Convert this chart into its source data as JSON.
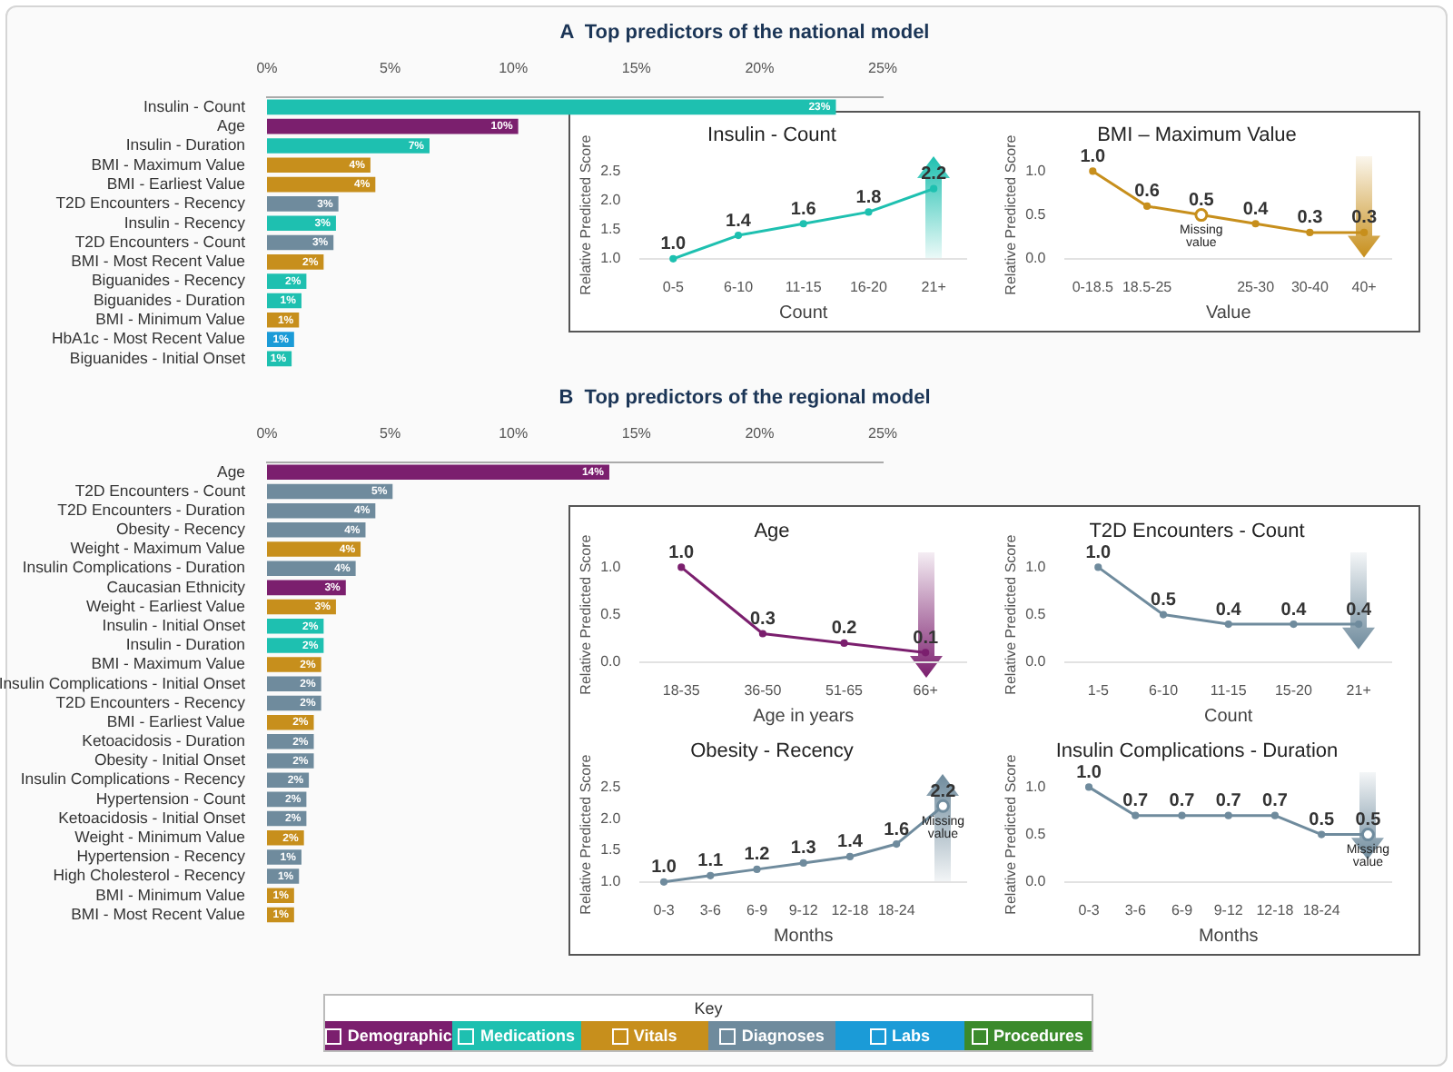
{
  "chart_data": [
    {
      "type": "bar",
      "title": "A  Top predictors of the national model",
      "orientation": "horizontal",
      "categories": [
        "Insulin - Count",
        "Age",
        "Insulin - Duration",
        "BMI - Maximum Value",
        "BMI - Earliest Value",
        "T2D Encounters - Recency",
        "Insulin - Recency",
        "T2D Encounters - Count",
        "BMI - Most Recent Value",
        "Biguanides - Recency",
        "Biguanides - Duration",
        "BMI - Minimum Value",
        "HbA1c - Most Recent Value",
        "Biguanides - Initial Onset"
      ],
      "values": [
        23.1,
        10.2,
        6.6,
        4.2,
        4.4,
        2.9,
        2.8,
        2.7,
        2.3,
        1.6,
        1.4,
        1.3,
        1.1,
        1.0
      ],
      "value_labels": [
        "23%",
        "10%",
        "7%",
        "4%",
        "4%",
        "3%",
        "3%",
        "3%",
        "2%",
        "2%",
        "1%",
        "1%",
        "1%",
        "1%"
      ],
      "colors": [
        "#1ec0b0",
        "#7b1f6e",
        "#1ec0b0",
        "#c78f1c",
        "#c78f1c",
        "#6f8b9d",
        "#1ec0b0",
        "#6f8b9d",
        "#c78f1c",
        "#1ec0b0",
        "#1ec0b0",
        "#c78f1c",
        "#1b9bd7",
        "#1ec0b0"
      ],
      "xlim": [
        0,
        25
      ],
      "xticks": [
        {
          "value": 0,
          "label": "0%"
        },
        {
          "value": 5,
          "label": "5%"
        },
        {
          "value": 10,
          "label": "10%"
        },
        {
          "value": 15,
          "label": "15%"
        },
        {
          "value": 20,
          "label": "20%"
        },
        {
          "value": 25,
          "label": "25%"
        }
      ]
    },
    {
      "type": "line",
      "title": "Insulin - Count",
      "xlabel": "Count",
      "ylabel": "Relative Predicted Score",
      "categories": [
        "0-5",
        "6-10",
        "11-15",
        "16-20",
        "21+"
      ],
      "values": [
        1.0,
        1.4,
        1.6,
        1.8,
        2.2
      ],
      "value_labels": [
        "1.0",
        "1.4",
        "1.6",
        "1.8",
        "2.2"
      ],
      "color": "#1ec0b0",
      "marker": "circle",
      "ylim": [
        1,
        2.5
      ],
      "yticks": [
        {
          "value": 1,
          "label": "1.0"
        },
        {
          "value": 1.5,
          "label": "1.5"
        },
        {
          "value": 2,
          "label": "2.0"
        },
        {
          "value": 2.5,
          "label": "2.5"
        }
      ]
    },
    {
      "type": "line",
      "title": "BMI – Maximum Value",
      "xlabel": "Value",
      "ylabel": "Relative Predicted Score",
      "categories": [
        "0-18.5",
        "18.5-25",
        null,
        "25-30",
        "30-40",
        "40+"
      ],
      "values": [
        1.0,
        0.6,
        0.5,
        0.4,
        0.3,
        0.3
      ],
      "value_labels": [
        "1.0",
        "0.6",
        "0.5",
        "0.4",
        "0.3",
        "0.3"
      ],
      "color": "#c78f1c",
      "marker": "circle",
      "ylim": [
        0,
        1
      ],
      "yticks": [
        {
          "value": 0,
          "label": "0.0"
        },
        {
          "value": 0.5,
          "label": "0.5"
        },
        {
          "value": 1,
          "label": "1.0"
        }
      ],
      "annotations": [
        {
          "text": "Missing value",
          "y": 0.5
        }
      ]
    },
    {
      "type": "bar",
      "title": "B  Top predictors of the regional model",
      "orientation": "horizontal",
      "stacked": true,
      "legend": "bottom",
      "legend_title": "Key",
      "categories": [
        "Age",
        "T2D Encounters - Count",
        "T2D Encounters - Duration",
        "Obesity - Recency",
        "Weight - Maximum Value",
        "Insulin Complications - Duration",
        "Caucasian Ethnicity",
        "Weight - Earliest Value",
        "Insulin - Initial Onset",
        "Insulin - Duration",
        "BMI - Maximum Value",
        "Insulin Complications - Initial Onset",
        "T2D Encounters - Recency",
        "BMI - Earliest Value",
        "Ketoacidosis - Duration",
        "Obesity - Initial Onset",
        "Insulin Complications - Recency",
        "Hypertension - Count",
        "Ketoacidosis - Initial Onset",
        "Weight - Minimum Value",
        "Hypertension - Recency",
        "High Cholesterol - Recency",
        "BMI - Minimum Value",
        "BMI - Most Recent Value"
      ],
      "xlim": [
        0,
        25
      ],
      "xticks": [
        {
          "value": 0,
          "label": "0%"
        },
        {
          "value": 5,
          "label": "5%"
        },
        {
          "value": 10,
          "label": "10%"
        },
        {
          "value": 15,
          "label": "15%"
        },
        {
          "value": 20,
          "label": "20%"
        },
        {
          "value": 25,
          "label": "25%"
        }
      ],
      "series": [
        {
          "name": "Demographic",
          "color": "#7b1f6e",
          "values": [
            13.9,
            null,
            null,
            null,
            null,
            null,
            3.2,
            null,
            null,
            null,
            null,
            null,
            null,
            null,
            null,
            null,
            null,
            null,
            null,
            null,
            null,
            null,
            null,
            null
          ],
          "value_labels": [
            "14%",
            null,
            null,
            null,
            null,
            null,
            "3%",
            null,
            null,
            null,
            null,
            null,
            null,
            null,
            null,
            null,
            null,
            null,
            null,
            null,
            null,
            null,
            null,
            null
          ]
        },
        {
          "name": "Medications",
          "color": "#1ec0b0",
          "values": [
            null,
            null,
            null,
            null,
            null,
            null,
            null,
            null,
            2.3,
            2.3,
            null,
            null,
            null,
            null,
            null,
            null,
            null,
            null,
            null,
            null,
            null,
            null,
            null,
            null
          ],
          "value_labels": [
            null,
            null,
            null,
            null,
            null,
            null,
            null,
            null,
            "2%",
            "2%",
            null,
            null,
            null,
            null,
            null,
            null,
            null,
            null,
            null,
            null,
            null,
            null,
            null,
            null
          ]
        },
        {
          "name": "Vitals",
          "color": "#c78f1c",
          "values": [
            null,
            null,
            null,
            null,
            3.8,
            null,
            null,
            2.8,
            null,
            null,
            2.2,
            null,
            null,
            1.9,
            null,
            null,
            null,
            null,
            null,
            1.5,
            null,
            null,
            1.1,
            1.1
          ],
          "value_labels": [
            null,
            null,
            null,
            null,
            "4%",
            null,
            null,
            "3%",
            null,
            null,
            "2%",
            null,
            null,
            "2%",
            null,
            null,
            null,
            null,
            null,
            "2%",
            null,
            null,
            "1%",
            "1%"
          ]
        },
        {
          "name": "Diagnoses",
          "color": "#6f8b9d",
          "values": [
            null,
            5.1,
            4.4,
            4.0,
            null,
            3.6,
            null,
            null,
            null,
            null,
            null,
            2.2,
            2.2,
            null,
            1.9,
            1.9,
            1.7,
            1.6,
            1.6,
            null,
            1.4,
            1.3,
            null,
            null
          ],
          "value_labels": [
            null,
            "5%",
            "4%",
            "4%",
            null,
            "4%",
            null,
            null,
            null,
            null,
            null,
            "2%",
            "2%",
            null,
            "2%",
            "2%",
            "2%",
            "2%",
            "2%",
            null,
            "1%",
            "1%",
            null,
            null
          ]
        },
        {
          "name": "Labs",
          "color": "#1b9bd7",
          "values": [
            null,
            null,
            null,
            null,
            null,
            null,
            null,
            null,
            null,
            null,
            null,
            null,
            null,
            null,
            null,
            null,
            null,
            null,
            null,
            null,
            null,
            null,
            null,
            null
          ]
        },
        {
          "name": "Procedures",
          "color": "#3b8a2c",
          "values": [
            null,
            null,
            null,
            null,
            null,
            null,
            null,
            null,
            null,
            null,
            null,
            null,
            null,
            null,
            null,
            null,
            null,
            null,
            null,
            null,
            null,
            null,
            null,
            null
          ]
        }
      ]
    },
    {
      "type": "line",
      "title": "Age",
      "xlabel": "Age in years",
      "ylabel": "Relative Predicted Score",
      "categories": [
        "18-35",
        "36-50",
        "51-65",
        "66+"
      ],
      "values": [
        1.0,
        0.3,
        0.2,
        0.1
      ],
      "value_labels": [
        "1.0",
        "0.3",
        "0.2",
        "0.1"
      ],
      "color": "#7b1f6e",
      "marker": "circle",
      "ylim": [
        0,
        1
      ],
      "yticks": [
        {
          "value": 0,
          "label": "0.0"
        },
        {
          "value": 0.5,
          "label": "0.5"
        },
        {
          "value": 1,
          "label": "1.0"
        }
      ]
    },
    {
      "type": "line",
      "title": "T2D Encounters - Count",
      "xlabel": "Count",
      "ylabel": "Relative Predicted Score",
      "categories": [
        "1-5",
        "6-10",
        "11-15",
        "15-20",
        "21+"
      ],
      "values": [
        1.0,
        0.5,
        0.4,
        0.4,
        0.4
      ],
      "value_labels": [
        "1.0",
        "0.5",
        "0.4",
        "0.4",
        "0.4"
      ],
      "color": "#6f8b9d",
      "marker": "circle",
      "ylim": [
        0,
        1
      ],
      "yticks": [
        {
          "value": 0,
          "label": "0.0"
        },
        {
          "value": 0.5,
          "label": "0.5"
        },
        {
          "value": 1,
          "label": "1.0"
        }
      ]
    },
    {
      "type": "line",
      "title": "Obesity - Recency",
      "xlabel": "Months",
      "ylabel": "Relative Predicted Score",
      "categories": [
        "0-3",
        "3-6",
        "6-9",
        "9-12",
        "12-18",
        "18-24",
        null
      ],
      "values": [
        1.0,
        1.1,
        1.2,
        1.3,
        1.4,
        1.6,
        2.2
      ],
      "value_labels": [
        "1.0",
        "1.1",
        "1.2",
        "1.3",
        "1.4",
        "1.6",
        "2.2"
      ],
      "color": "#6f8b9d",
      "marker": "circle",
      "ylim": [
        1,
        2.5
      ],
      "yticks": [
        {
          "value": 1,
          "label": "1.0"
        },
        {
          "value": 1.5,
          "label": "1.5"
        },
        {
          "value": 2,
          "label": "2.0"
        },
        {
          "value": 2.5,
          "label": "2.5"
        }
      ],
      "annotations": [
        {
          "text": "Missing value",
          "y": 2.2
        }
      ]
    },
    {
      "type": "line",
      "title": "Insulin Complications - Duration",
      "xlabel": "Months",
      "ylabel": "Relative Predicted Score",
      "categories": [
        "0-3",
        "3-6",
        "6-9",
        "9-12",
        "12-18",
        "18-24",
        null
      ],
      "values": [
        1.0,
        0.7,
        0.7,
        0.7,
        0.7,
        0.5,
        0.5
      ],
      "value_labels": [
        "1.0",
        "0.7",
        "0.7",
        "0.7",
        "0.7",
        "0.5",
        "0.5"
      ],
      "color": "#6f8b9d",
      "marker": "circle",
      "ylim": [
        0,
        1
      ],
      "yticks": [
        {
          "value": 0,
          "label": "0.0"
        },
        {
          "value": 0.5,
          "label": "0.5"
        },
        {
          "value": 1,
          "label": "1.0"
        }
      ],
      "annotations": [
        {
          "text": "Missing value",
          "y": 0.5
        }
      ]
    }
  ]
}
